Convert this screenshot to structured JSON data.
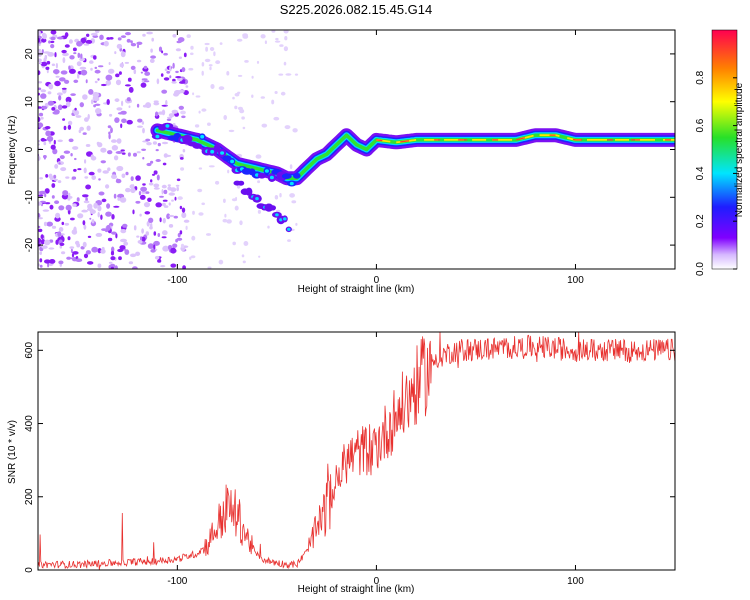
{
  "title": "S225.2026.082.15.45.G14",
  "chart_data": [
    {
      "type": "heatmap",
      "subtype": "spectrogram",
      "xlabel": "Height of straight line (km)",
      "ylabel": "Frequency (Hz)",
      "xlim": [
        -170,
        150
      ],
      "ylim": [
        -25,
        25
      ],
      "xticks": [
        -100,
        0,
        100
      ],
      "yticks": [
        -20,
        -10,
        0,
        10,
        20
      ],
      "colorbar": {
        "label": "Normalized spectral amplitude",
        "range": [
          0,
          1
        ],
        "ticks": [
          "0.0",
          "0.2",
          "0.4",
          "0.6",
          "0.8"
        ]
      },
      "ridge": {
        "description": "dominant frequency track",
        "x": [
          -110,
          -100,
          -90,
          -80,
          -70,
          -60,
          -50,
          -45,
          -40,
          -35,
          -30,
          -25,
          -20,
          -15,
          -10,
          -5,
          0,
          10,
          20,
          40,
          60,
          70,
          80,
          90,
          100,
          120,
          150
        ],
        "y": [
          4,
          3,
          2,
          0,
          -3,
          -4,
          -5,
          -6,
          -6,
          -4,
          -2,
          -1,
          1,
          3,
          1,
          0,
          2,
          1.5,
          2,
          2,
          2,
          2,
          3,
          3,
          2,
          2,
          2
        ]
      },
      "branch": {
        "description": "secondary descending track",
        "x": [
          -70,
          -60,
          -50,
          -44
        ],
        "y": [
          -7,
          -11,
          -13,
          -16
        ]
      }
    },
    {
      "type": "line",
      "xlabel": "Height of straight line (km)",
      "ylabel": "SNR (10 * v/v)",
      "xlim": [
        -170,
        150
      ],
      "ylim": [
        0,
        650
      ],
      "xticks": [
        -100,
        0,
        100
      ],
      "yticks": [
        0,
        200,
        400,
        600
      ],
      "color": "#e8312f",
      "series": [
        {
          "name": "SNR",
          "x": [
            -170,
            -150,
            -130,
            -110,
            -100,
            -90,
            -85,
            -80,
            -75,
            -70,
            -65,
            -60,
            -55,
            -50,
            -45,
            -40,
            -35,
            -30,
            -25,
            -20,
            -15,
            -10,
            -5,
            0,
            5,
            10,
            15,
            20,
            25,
            30,
            40,
            60,
            80,
            100,
            120,
            150
          ],
          "y": [
            15,
            15,
            20,
            25,
            30,
            45,
            70,
            120,
            170,
            150,
            90,
            40,
            25,
            20,
            15,
            15,
            50,
            110,
            170,
            240,
            300,
            320,
            330,
            340,
            380,
            420,
            460,
            500,
            540,
            580,
            600,
            605,
            610,
            600,
            600,
            600
          ]
        }
      ]
    }
  ]
}
